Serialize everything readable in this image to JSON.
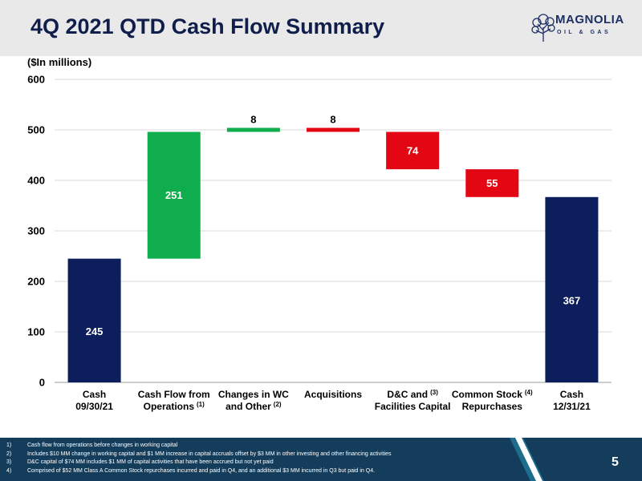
{
  "header": {
    "title": "4Q 2021 QTD Cash Flow Summary",
    "logo_text": "MAGNOLIA",
    "logo_subtext": "OIL & GAS"
  },
  "unit_label": "($In millions)",
  "colors": {
    "header_bg": "#e9e9ea",
    "title": "#0f1e4a",
    "cash": "#0c1e5c",
    "increase": "#0fad4e",
    "decrease": "#e30613",
    "footer_bg": "#143d5c",
    "footer_accent": "#1e6d8c"
  },
  "chart_data": {
    "type": "waterfall",
    "title": "",
    "xlabel": "",
    "ylabel": "",
    "ylim": [
      0,
      600
    ],
    "yticks": [
      0,
      100,
      200,
      300,
      400,
      500,
      600
    ],
    "grid": true,
    "bars": [
      {
        "category": "Cash 09/30/21",
        "label_lines": [
          "Cash",
          "09/30/21"
        ],
        "sup": "",
        "kind": "total",
        "start": 0,
        "end": 245,
        "label": "245"
      },
      {
        "category": "Cash Flow from Operations (1)",
        "label_lines": [
          "Cash Flow from",
          "Operations"
        ],
        "sup": "(1)",
        "kind": "increase",
        "start": 245,
        "end": 496,
        "label": "251"
      },
      {
        "category": "Changes in WC and Other (2)",
        "label_lines": [
          "Changes in WC",
          "and Other"
        ],
        "sup": "(2)",
        "kind": "increase",
        "start": 496,
        "end": 504,
        "label": "8"
      },
      {
        "category": "Acquisitions",
        "label_lines": [
          "Acquisitions"
        ],
        "sup": "",
        "kind": "decrease",
        "start": 504,
        "end": 496,
        "label": "8"
      },
      {
        "category": "D&C and Facilities Capital (3)",
        "label_lines": [
          "D&C and",
          "Facilities Capital"
        ],
        "sup": "(3)",
        "kind": "decrease",
        "start": 496,
        "end": 422,
        "label": "74"
      },
      {
        "category": "Common Stock Repurchases (4)",
        "label_lines": [
          "Common Stock",
          "Repurchases"
        ],
        "sup": "(4)",
        "kind": "decrease",
        "start": 422,
        "end": 367,
        "label": "55"
      },
      {
        "category": "Cash 12/31/21",
        "label_lines": [
          "Cash",
          "12/31/21"
        ],
        "sup": "",
        "kind": "total",
        "start": 0,
        "end": 367,
        "label": "367"
      }
    ]
  },
  "footnotes": [
    {
      "num": "1)",
      "text": "Cash flow from operations before changes in working capital"
    },
    {
      "num": "2)",
      "text": "Includes $10 MM change in working capital and $1 MM increase in capital accruals offset by $3 MM in other investing and other financing activities"
    },
    {
      "num": "3)",
      "text": "D&C capital of $74 MM includes $1 MM of capital activities that have been accrued but not yet paid"
    },
    {
      "num": "4)",
      "text": "Comprised of $52 MM Class A Common Stock repurchases incurred and paid in Q4, and an additional $3 MM incurred in Q3 but paid in Q4."
    }
  ],
  "page_number": "5"
}
